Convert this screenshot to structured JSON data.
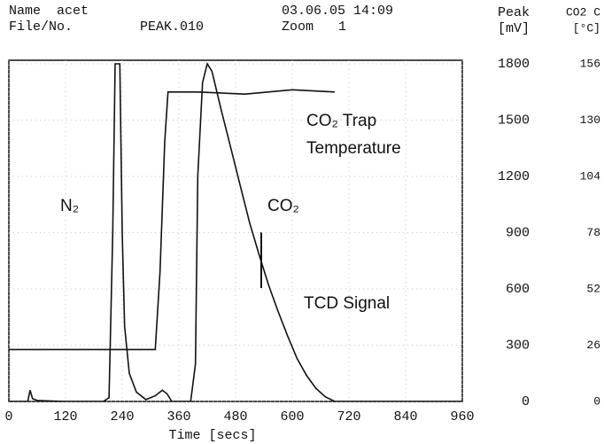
{
  "chart_data": {
    "type": "line",
    "header": {
      "name_label": "Name",
      "name": "acet",
      "datetime": "03.06.05 14:09",
      "file_label": "File/No.",
      "file": "PEAK.010",
      "zoom_label": "Zoom",
      "zoom": "1"
    },
    "y_label": [
      "Peak",
      "[mV]"
    ],
    "y2_label": [
      "CO2 C",
      "[°C]"
    ],
    "x_label": "Time [secs]",
    "annotations": [
      "N₂",
      "CO₂ Trap",
      "Temperature",
      "CO₂",
      "TCD Signal"
    ],
    "xlim": [
      0,
      960
    ],
    "xticks": [
      0,
      120,
      240,
      360,
      480,
      600,
      720,
      840,
      960
    ],
    "ylim": [
      0,
      1800
    ],
    "yticks": [
      0,
      300,
      600,
      900,
      1200,
      1500,
      1800
    ],
    "y2lim": [
      0,
      156
    ],
    "y2ticks": [
      0,
      26,
      52,
      78,
      104,
      130,
      156
    ],
    "grid": true,
    "series": [
      {
        "name": "TCD Signal",
        "color": "#111111",
        "x": [
          0,
          40,
          45,
          50,
          60,
          120,
          200,
          212,
          220,
          225,
          235,
          240,
          245,
          255,
          270,
          290,
          310,
          325,
          335,
          345,
          385,
          395,
          400,
          410,
          420,
          430,
          450,
          470,
          490,
          510,
          530,
          550,
          570,
          590,
          610,
          630,
          650,
          670,
          690,
          960
        ],
        "values": [
          0,
          0,
          60,
          15,
          5,
          0,
          0,
          20,
          900,
          1800,
          1800,
          900,
          400,
          150,
          50,
          10,
          30,
          60,
          40,
          0,
          0,
          200,
          1200,
          1700,
          1800,
          1760,
          1550,
          1350,
          1150,
          950,
          780,
          620,
          480,
          350,
          230,
          140,
          70,
          25,
          0,
          0
        ]
      },
      {
        "name": "CO₂ Trap Temperature",
        "color": "#111111",
        "axis": "y2",
        "x": [
          0,
          310,
          320,
          330,
          337,
          400,
          500,
          600,
          690
        ],
        "values": [
          24,
          24,
          60,
          120,
          143,
          143,
          142,
          144,
          143
        ]
      }
    ]
  }
}
